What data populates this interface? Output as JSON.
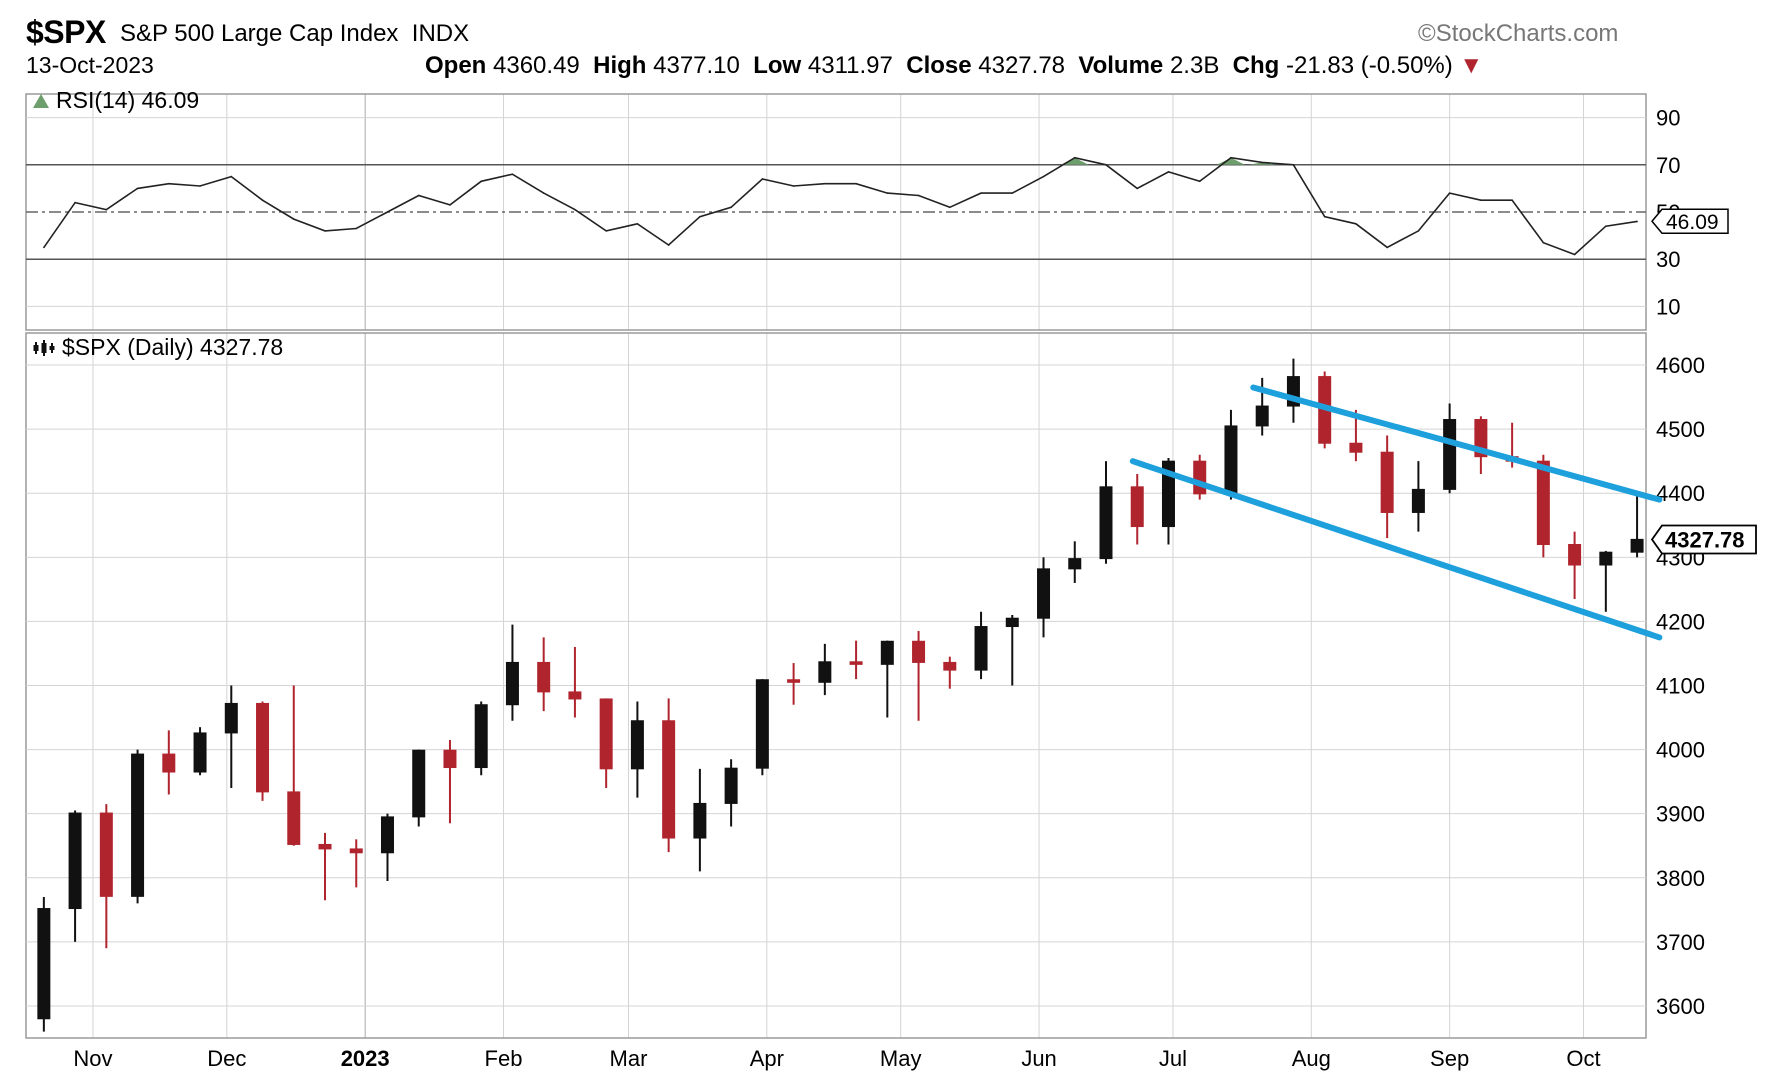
{
  "header": {
    "ticker": "$SPX",
    "name": "S&P 500 Large Cap Index",
    "exchange": "INDX",
    "date": "13-Oct-2023",
    "watermark": "StockCharts.com",
    "open_label": "Open",
    "open": "4360.49",
    "high_label": "High",
    "high": "4377.10",
    "low_label": "Low",
    "low": "4311.97",
    "close_label": "Close",
    "close": "4327.78",
    "volume_label": "Volume",
    "volume": "2.3B",
    "chg_label": "Chg",
    "chg": "-21.83 (-0.50%)"
  },
  "colors": {
    "up": "#111111",
    "down": "#b0242e",
    "trend": "#1ea0dc",
    "grid": "#d4d4d4",
    "frame": "#9a9a9a",
    "rsi_fill": "#6e9e6e"
  },
  "chart_data": [
    {
      "panel": "rsi",
      "type": "line",
      "title": "RSI(14) 46.09",
      "ylim": [
        0,
        100
      ],
      "yticks": [
        90,
        70,
        50,
        30,
        10
      ],
      "reference_lines": [
        70,
        50,
        30
      ],
      "current_value": "46.09",
      "x": [
        "2022-10-21",
        "2022-10-28",
        "2022-11-04",
        "2022-11-11",
        "2022-11-18",
        "2022-11-25",
        "2022-12-02",
        "2022-12-09",
        "2022-12-16",
        "2022-12-23",
        "2022-12-30",
        "2023-01-06",
        "2023-01-13",
        "2023-01-20",
        "2023-01-27",
        "2023-02-03",
        "2023-02-10",
        "2023-02-17",
        "2023-02-24",
        "2023-03-03",
        "2023-03-10",
        "2023-03-17",
        "2023-03-24",
        "2023-03-31",
        "2023-04-07",
        "2023-04-14",
        "2023-04-21",
        "2023-04-28",
        "2023-05-05",
        "2023-05-12",
        "2023-05-19",
        "2023-05-26",
        "2023-06-02",
        "2023-06-09",
        "2023-06-16",
        "2023-06-23",
        "2023-06-30",
        "2023-07-07",
        "2023-07-14",
        "2023-07-21",
        "2023-07-28",
        "2023-08-04",
        "2023-08-11",
        "2023-08-18",
        "2023-08-25",
        "2023-09-01",
        "2023-09-08",
        "2023-09-15",
        "2023-09-22",
        "2023-09-29",
        "2023-10-06",
        "2023-10-13"
      ],
      "values": [
        35,
        54,
        51,
        60,
        62,
        61,
        65,
        55,
        47,
        42,
        43,
        50,
        57,
        53,
        63,
        66,
        58,
        51,
        42,
        45,
        36,
        48,
        52,
        64,
        61,
        62,
        62,
        58,
        57,
        52,
        58,
        58,
        65,
        73,
        70,
        60,
        67,
        63,
        73,
        71,
        70,
        48,
        45,
        35,
        42,
        58,
        55,
        55,
        37,
        32,
        44,
        46
      ]
    },
    {
      "panel": "price",
      "type": "candlestick",
      "title": "$SPX (Daily) 4327.78",
      "ylim": [
        3550,
        4650
      ],
      "yticks": [
        4600,
        4500,
        4400,
        4300,
        4200,
        4100,
        4000,
        3900,
        3800,
        3700,
        3600
      ],
      "last_value": "4327.78",
      "x_labels": [
        "Nov",
        "Dec",
        "2023",
        "Feb",
        "Mar",
        "Apr",
        "May",
        "Jun",
        "Jul",
        "Aug",
        "Sep",
        "Oct"
      ],
      "columns": [
        "week_ending",
        "open",
        "high",
        "low",
        "close"
      ],
      "ohlc": [
        [
          "2022-10-21",
          3580,
          3770,
          3560,
          3752
        ],
        [
          "2022-10-28",
          3752,
          3905,
          3700,
          3901
        ],
        [
          "2022-11-04",
          3901,
          3915,
          3690,
          3771
        ],
        [
          "2022-11-11",
          3771,
          4000,
          3760,
          3993
        ],
        [
          "2022-11-18",
          3993,
          4030,
          3930,
          3965
        ],
        [
          "2022-11-25",
          3965,
          4035,
          3960,
          4026
        ],
        [
          "2022-12-02",
          4026,
          4100,
          3940,
          4072
        ],
        [
          "2022-12-09",
          4072,
          4075,
          3920,
          3934
        ],
        [
          "2022-12-16",
          3934,
          4100,
          3850,
          3852
        ],
        [
          "2022-12-23",
          3852,
          3870,
          3765,
          3845
        ],
        [
          "2022-12-30",
          3845,
          3860,
          3785,
          3839
        ],
        [
          "2023-01-06",
          3839,
          3900,
          3795,
          3895
        ],
        [
          "2023-01-13",
          3895,
          4000,
          3880,
          3999
        ],
        [
          "2023-01-20",
          3999,
          4015,
          3885,
          3972
        ],
        [
          "2023-01-27",
          3972,
          4075,
          3960,
          4070
        ],
        [
          "2023-02-03",
          4070,
          4195,
          4045,
          4136
        ],
        [
          "2023-02-10",
          4136,
          4175,
          4060,
          4090
        ],
        [
          "2023-02-17",
          4090,
          4160,
          4050,
          4079
        ],
        [
          "2023-02-24",
          4079,
          4080,
          3940,
          3970
        ],
        [
          "2023-03-03",
          3970,
          4075,
          3925,
          4045
        ],
        [
          "2023-03-10",
          4045,
          4080,
          3840,
          3862
        ],
        [
          "2023-03-17",
          3862,
          3970,
          3810,
          3916
        ],
        [
          "2023-03-24",
          3916,
          3985,
          3880,
          3971
        ],
        [
          "2023-03-31",
          3971,
          4110,
          3960,
          4109
        ],
        [
          "2023-04-07",
          4109,
          4135,
          4070,
          4105
        ],
        [
          "2023-04-14",
          4105,
          4165,
          4085,
          4137
        ],
        [
          "2023-04-21",
          4137,
          4170,
          4110,
          4133
        ],
        [
          "2023-04-28",
          4133,
          4170,
          4050,
          4169
        ],
        [
          "2023-05-05",
          4169,
          4185,
          4045,
          4136
        ],
        [
          "2023-05-12",
          4136,
          4145,
          4095,
          4124
        ],
        [
          "2023-05-19",
          4124,
          4215,
          4110,
          4192
        ],
        [
          "2023-05-26",
          4192,
          4210,
          4100,
          4205
        ],
        [
          "2023-06-02",
          4205,
          4300,
          4175,
          4282
        ],
        [
          "2023-06-09",
          4282,
          4325,
          4260,
          4298
        ],
        [
          "2023-06-16",
          4298,
          4450,
          4290,
          4410
        ],
        [
          "2023-06-23",
          4410,
          4430,
          4320,
          4348
        ],
        [
          "2023-06-30",
          4348,
          4455,
          4320,
          4450
        ],
        [
          "2023-07-07",
          4450,
          4460,
          4390,
          4399
        ],
        [
          "2023-07-14",
          4399,
          4530,
          4390,
          4505
        ],
        [
          "2023-07-21",
          4505,
          4580,
          4490,
          4536
        ],
        [
          "2023-07-28",
          4536,
          4610,
          4510,
          4582
        ],
        [
          "2023-08-04",
          4582,
          4590,
          4470,
          4478
        ],
        [
          "2023-08-11",
          4478,
          4530,
          4450,
          4464
        ],
        [
          "2023-08-18",
          4464,
          4490,
          4330,
          4370
        ],
        [
          "2023-08-25",
          4370,
          4450,
          4340,
          4406
        ],
        [
          "2023-09-01",
          4406,
          4540,
          4400,
          4515
        ],
        [
          "2023-09-08",
          4515,
          4520,
          4430,
          4457
        ],
        [
          "2023-09-15",
          4457,
          4510,
          4440,
          4450
        ],
        [
          "2023-09-22",
          4450,
          4460,
          4300,
          4320
        ],
        [
          "2023-09-29",
          4320,
          4340,
          4235,
          4288
        ],
        [
          "2023-10-06",
          4288,
          4310,
          4215,
          4308
        ],
        [
          "2023-10-13",
          4308,
          4395,
          4300,
          4328
        ]
      ],
      "trendlines": [
        {
          "from": [
            "2023-07-19",
            4565
          ],
          "to": [
            "2023-10-18",
            4390
          ]
        },
        {
          "from": [
            "2023-06-22",
            4450
          ],
          "to": [
            "2023-10-18",
            4175
          ]
        }
      ]
    }
  ]
}
